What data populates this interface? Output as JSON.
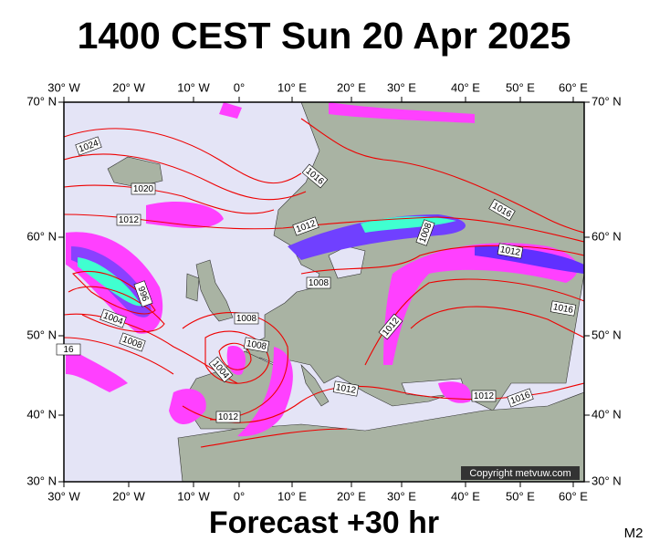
{
  "header": {
    "title": "1400 CEST Sun 20 Apr 2025"
  },
  "map": {
    "lon_labels": [
      "30° W",
      "20° W",
      "10° W",
      "0°",
      "10° E",
      "20° E",
      "30° E",
      "40° E",
      "50° E",
      "60° E"
    ],
    "lat_labels": [
      "70° N",
      "60° N",
      "50° N",
      "40° N",
      "30° N"
    ],
    "isobar_labels": [
      "1024",
      "1020",
      "1012",
      "996",
      "1004",
      "1008",
      "16",
      "1016",
      "1012",
      "1008",
      "1016",
      "1012",
      "1016",
      "1008",
      "1008",
      "1008",
      "1004",
      "1012",
      "1012",
      "1012",
      "1012",
      "1016"
    ],
    "copyright": "Copyright metvuw.com"
  },
  "footer": {
    "forecast": "Forecast +30 hr",
    "code": "M2"
  }
}
